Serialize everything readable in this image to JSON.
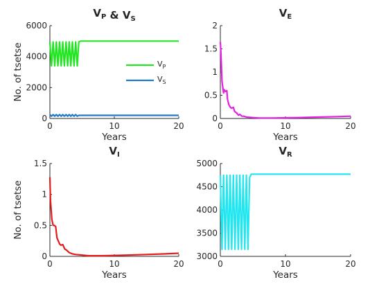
{
  "chart_data": [
    {
      "id": "vp-vs",
      "type": "line",
      "title_main": [
        "V",
        " & V"
      ],
      "title_subs": [
        "P",
        "S"
      ],
      "xlabel": "Years",
      "ylabel": "No. of tsetse",
      "xlim": [
        0,
        20
      ],
      "ylim": [
        0,
        6000
      ],
      "xticks": [
        0,
        10,
        20
      ],
      "yticks": [
        0,
        2000,
        4000,
        6000
      ],
      "grid": false,
      "legend": {
        "position": "right",
        "entries": [
          {
            "main": "V",
            "sub": "P",
            "color": "#22e622"
          },
          {
            "main": "V",
            "sub": "S",
            "color": "#1f77c8"
          }
        ]
      },
      "series": [
        {
          "color": "#22e622",
          "x": [
            0,
            0.25,
            0.5,
            0.75,
            1,
            1.25,
            1.5,
            1.75,
            2,
            2.25,
            2.5,
            2.75,
            3,
            3.25,
            3.5,
            3.75,
            4,
            4.25,
            4.5,
            4.75,
            5,
            10,
            15,
            20
          ],
          "values": [
            4950,
            3400,
            4950,
            3400,
            4950,
            3400,
            4950,
            3400,
            4950,
            3400,
            4950,
            3400,
            4950,
            3400,
            4950,
            3400,
            4950,
            3400,
            4950,
            5000,
            5000,
            5000,
            5000,
            5000
          ]
        },
        {
          "color": "#1f77c8",
          "x": [
            0,
            0.25,
            0.5,
            0.75,
            1,
            1.25,
            1.5,
            1.75,
            2,
            2.25,
            2.5,
            2.75,
            3,
            3.25,
            3.5,
            3.75,
            4,
            4.25,
            4.5,
            4.75,
            5,
            10,
            15,
            20
          ],
          "values": [
            250,
            150,
            250,
            150,
            250,
            150,
            250,
            150,
            250,
            150,
            250,
            150,
            250,
            150,
            250,
            150,
            250,
            150,
            200,
            200,
            200,
            200,
            200,
            200
          ]
        }
      ]
    },
    {
      "id": "ve",
      "type": "line",
      "title_main": [
        "V"
      ],
      "title_subs": [
        "E"
      ],
      "xlabel": "Years",
      "ylabel": "",
      "xlim": [
        0,
        20
      ],
      "ylim": [
        0,
        2
      ],
      "xticks": [
        0,
        10,
        20
      ],
      "yticks": [
        0,
        0.5,
        1,
        1.5,
        2
      ],
      "grid": false,
      "series": [
        {
          "color": "#e61ee6",
          "x": [
            0,
            0.1,
            0.25,
            0.5,
            0.6,
            0.8,
            1,
            1.1,
            1.3,
            1.5,
            1.7,
            2,
            2.2,
            2.5,
            2.8,
            3,
            3.3,
            3.6,
            4,
            5,
            6,
            8,
            10,
            12,
            15,
            18,
            20
          ],
          "values": [
            1.65,
            1.4,
            0.8,
            0.55,
            0.62,
            0.58,
            0.6,
            0.42,
            0.3,
            0.25,
            0.22,
            0.24,
            0.15,
            0.12,
            0.07,
            0.09,
            0.05,
            0.05,
            0.03,
            0.02,
            0.01,
            0.01,
            0.015,
            0.02,
            0.03,
            0.04,
            0.05
          ]
        }
      ]
    },
    {
      "id": "vi",
      "type": "line",
      "title_main": [
        "V"
      ],
      "title_subs": [
        "I"
      ],
      "xlabel": "Years",
      "ylabel": "No. of tsetse",
      "xlim": [
        0,
        20
      ],
      "ylim": [
        0,
        1.5
      ],
      "xticks": [
        0,
        10,
        20
      ],
      "yticks": [
        0,
        0.5,
        1,
        1.5
      ],
      "grid": false,
      "series": [
        {
          "color": "#e61a1a",
          "x": [
            0,
            0.1,
            0.3,
            0.5,
            0.7,
            0.9,
            1.1,
            1.3,
            1.5,
            1.7,
            2,
            2.3,
            2.6,
            3,
            3.5,
            4,
            5,
            6,
            8,
            10,
            12,
            15,
            18,
            20
          ],
          "values": [
            1.28,
            0.9,
            0.6,
            0.5,
            0.5,
            0.48,
            0.3,
            0.25,
            0.2,
            0.18,
            0.19,
            0.12,
            0.1,
            0.06,
            0.04,
            0.03,
            0.02,
            0.01,
            0.01,
            0.015,
            0.02,
            0.03,
            0.04,
            0.05
          ]
        }
      ]
    },
    {
      "id": "vr",
      "type": "line",
      "title_main": [
        "V"
      ],
      "title_subs": [
        "R"
      ],
      "xlabel": "Years",
      "ylabel": "",
      "xlim": [
        0,
        20
      ],
      "ylim": [
        3000,
        5000
      ],
      "xticks": [
        0,
        10,
        20
      ],
      "yticks": [
        3000,
        3500,
        4000,
        4500,
        5000
      ],
      "grid": false,
      "series": [
        {
          "color": "#22e6f0",
          "x": [
            0,
            0.25,
            0.5,
            0.75,
            1,
            1.25,
            1.5,
            1.75,
            2,
            2.25,
            2.5,
            2.75,
            3,
            3.25,
            3.5,
            3.75,
            4,
            4.25,
            4.5,
            4.75,
            5,
            10,
            15,
            20
          ],
          "values": [
            4750,
            3150,
            4750,
            3150,
            4750,
            3150,
            4750,
            3150,
            4750,
            3150,
            4750,
            3150,
            4750,
            3150,
            4750,
            3150,
            4750,
            3150,
            4700,
            4770,
            4770,
            4770,
            4770,
            4770
          ]
        }
      ]
    }
  ]
}
